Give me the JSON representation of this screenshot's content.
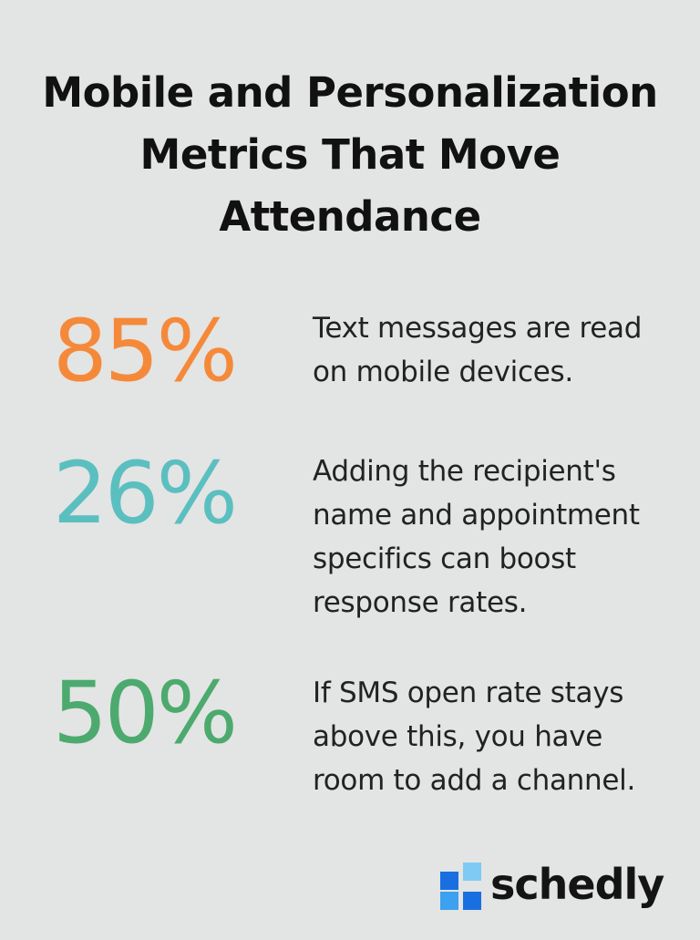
{
  "title": {
    "line1": "Mobile and Personalization",
    "line2": "Metrics That Move",
    "line3": "Attendance"
  },
  "stats": [
    {
      "value": "85%",
      "color": "#f5893a",
      "lines": [
        "Text messages are read",
        "on mobile devices."
      ]
    },
    {
      "value": "26%",
      "color": "#5bbfc0",
      "lines": [
        "Adding the recipient's",
        "name and appointment",
        "specifics can boost",
        "response rates."
      ]
    },
    {
      "value": "50%",
      "color": "#4caa6e",
      "lines": [
        "If SMS open rate stays",
        "above this, you have",
        "room to add a channel."
      ]
    }
  ],
  "brand": {
    "name": "schedly",
    "icon": "schedly-logo-icon",
    "colors": [
      "#1a6fe0",
      "#3ea0f0",
      "#7fcaf5"
    ]
  }
}
